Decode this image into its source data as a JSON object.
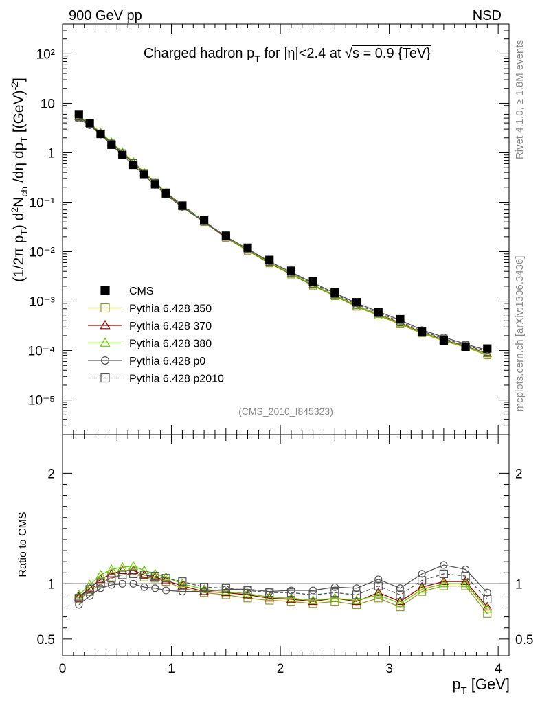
{
  "header": {
    "left_label": "900 GeV pp",
    "right_label": "NSD"
  },
  "side_text": {
    "rivet": "Rivet 4.1.0, ≥ 1.8M events",
    "mcplots": "mcplots.cern.ch [arXiv:1306.3436]"
  },
  "chart_data": [
    {
      "type": "line",
      "panel": "main",
      "title": "Charged hadron p_T for |η|<2.4 at √s = 0.9 {TeV}",
      "title_parts": [
        "Charged hadron p",
        "T",
        " for |η|<2.4 at ",
        "√",
        "s = 0.9 {TeV}"
      ],
      "ylabel": "(1/2π p_T) d²N_ch/dη dp_T [(GeV)⁻²]",
      "xlabel": "p_T [GeV]",
      "yscale": "log",
      "xlim": [
        0,
        4.1
      ],
      "ylim": [
        2e-06,
        400
      ],
      "y_tick_labels": [
        "10⁻⁵",
        "10⁻⁴",
        "10⁻³",
        "10⁻²",
        "10⁻¹",
        "1",
        "10",
        "10²"
      ],
      "annotation": "(CMS_2010_I845323)",
      "x": [
        0.15,
        0.25,
        0.35,
        0.45,
        0.55,
        0.65,
        0.75,
        0.85,
        0.95,
        1.1,
        1.3,
        1.5,
        1.7,
        1.9,
        2.1,
        2.3,
        2.5,
        2.7,
        2.9,
        3.1,
        3.3,
        3.5,
        3.7,
        3.9
      ],
      "cms": [
        6.0,
        4.0,
        2.4,
        1.45,
        0.9,
        0.57,
        0.36,
        0.23,
        0.15,
        0.085,
        0.043,
        0.021,
        0.012,
        0.0068,
        0.0041,
        0.0025,
        0.0015,
        0.00095,
        0.00059,
        0.00043,
        0.00024,
        0.00016,
        0.00012,
        0.00011
      ]
    },
    {
      "type": "line",
      "panel": "ratio",
      "ylabel": "Ratio to CMS",
      "xlabel": "p_T [GeV]",
      "xlim": [
        0,
        4.1
      ],
      "ylim": [
        0.35,
        2.35
      ],
      "x_tick_labels": [
        "0",
        "1",
        "2",
        "3",
        "4"
      ],
      "y_tick_labels": [
        "0.5",
        "1",
        "2"
      ],
      "reference": 1,
      "x": [
        0.15,
        0.25,
        0.35,
        0.45,
        0.55,
        0.65,
        0.75,
        0.85,
        0.95,
        1.1,
        1.3,
        1.5,
        1.7,
        1.9,
        2.1,
        2.3,
        2.5,
        2.7,
        2.9,
        3.1,
        3.3,
        3.5,
        3.7,
        3.9
      ],
      "series": [
        {
          "name": "Pythia 6.428 350",
          "color": "#999933",
          "marker": "square",
          "dash": false,
          "values": [
            0.86,
            0.93,
            1.0,
            1.06,
            1.08,
            1.09,
            1.06,
            1.05,
            1.02,
            0.96,
            0.92,
            0.9,
            0.87,
            0.85,
            0.84,
            0.82,
            0.84,
            0.81,
            0.87,
            0.79,
            0.93,
            0.98,
            0.98,
            0.73
          ]
        },
        {
          "name": "Pythia 6.428 370",
          "color": "#990000",
          "marker": "triangle",
          "dash": false,
          "values": [
            0.88,
            0.96,
            1.04,
            1.09,
            1.12,
            1.12,
            1.08,
            1.06,
            1.03,
            0.98,
            0.93,
            0.92,
            0.9,
            0.87,
            0.86,
            0.84,
            0.87,
            0.84,
            0.92,
            0.84,
            0.97,
            1.02,
            1.02,
            0.79
          ]
        },
        {
          "name": "Pythia 6.428 380",
          "color": "#66cc00",
          "marker": "triangle",
          "dash": false,
          "values": [
            0.9,
            0.99,
            1.08,
            1.13,
            1.15,
            1.16,
            1.12,
            1.09,
            1.06,
            1.0,
            0.95,
            0.93,
            0.91,
            0.88,
            0.87,
            0.85,
            0.87,
            0.85,
            0.9,
            0.82,
            0.95,
            1.0,
            1.0,
            0.77
          ]
        },
        {
          "name": "Pythia 6.428 p0",
          "color": "#555555",
          "marker": "circle",
          "dash": false,
          "values": [
            0.81,
            0.89,
            0.96,
            0.99,
            1.0,
            1.0,
            0.97,
            0.96,
            0.94,
            0.93,
            0.93,
            0.95,
            0.95,
            0.93,
            0.94,
            0.94,
            0.97,
            0.96,
            1.04,
            0.96,
            1.09,
            1.17,
            1.13,
            0.92
          ]
        },
        {
          "name": "Pythia 6.428 p2010",
          "color": "#555555",
          "marker": "square",
          "dash": true,
          "values": [
            0.87,
            0.95,
            1.01,
            1.05,
            1.08,
            1.09,
            1.08,
            1.07,
            1.05,
            1.02,
            0.97,
            0.96,
            0.94,
            0.92,
            0.92,
            0.9,
            0.92,
            0.9,
            0.98,
            0.9,
            1.03,
            1.09,
            1.07,
            0.86
          ]
        }
      ]
    }
  ],
  "legend": {
    "placement": "lower-left",
    "entries": [
      "CMS",
      "Pythia 6.428 350",
      "Pythia 6.428 370",
      "Pythia 6.428 380",
      "Pythia 6.428 p0",
      "Pythia 6.428 p2010"
    ]
  }
}
